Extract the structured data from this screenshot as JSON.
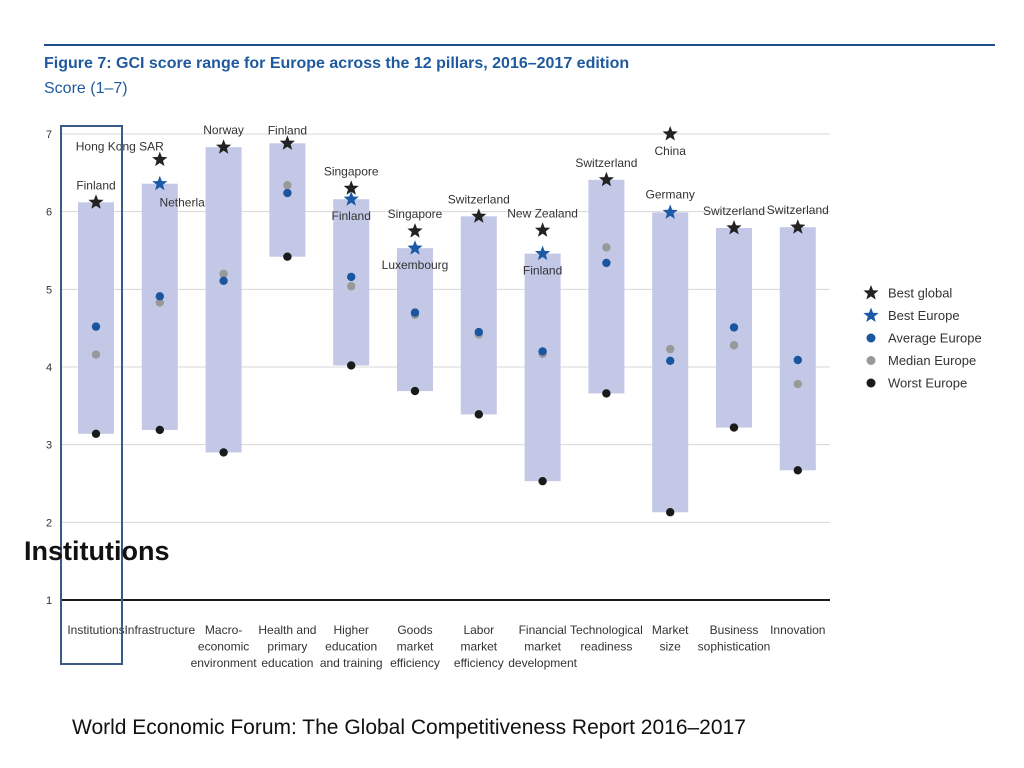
{
  "figure": {
    "title": "Figure 7: GCI score range for Europe across the 12 pillars, 2016–2017 edition",
    "subtitle": "Score (1–7)"
  },
  "callout": {
    "label": "Institutions"
  },
  "source": {
    "text": "World Economic Forum: The Global Competitiveness Report 2016–2017"
  },
  "colors": {
    "band": "#c2c8e6",
    "best_global": "#222222",
    "best_europe": "#1a5aa6",
    "average_europe": "#1a55a0",
    "median_europe": "#999999",
    "worst_europe": "#1a1a1a",
    "highlight": "#3a5a85",
    "title": "#1f5a9e"
  },
  "chart_data": {
    "type": "range",
    "title": "Figure 7: GCI score range for Europe across the 12 pillars, 2016–2017 edition",
    "ylabel": "Score (1–7)",
    "ylim": [
      1,
      7
    ],
    "yticks": [
      "1",
      "2",
      "3",
      "4",
      "5",
      "6",
      "7"
    ],
    "grid": true,
    "legend": [
      {
        "key": "best_global",
        "label": "Best global"
      },
      {
        "key": "best_europe",
        "label": "Best Europe"
      },
      {
        "key": "average_europe",
        "label": "Average Europe"
      },
      {
        "key": "median_europe",
        "label": "Median Europe"
      },
      {
        "key": "worst_europe",
        "label": "Worst Europe"
      }
    ],
    "pillars": [
      {
        "label": [
          "Institutions"
        ],
        "best_global": 6.12,
        "best_global_country": "Finland",
        "best_europe": 6.12,
        "best_europe_country": "",
        "average": 4.52,
        "median": 4.16,
        "worst": 3.14
      },
      {
        "label": [
          "Infrastructure"
        ],
        "best_global": 6.67,
        "best_global_country": "Hong Kong SAR",
        "best_europe": 6.36,
        "best_europe_country": "Netherlands",
        "average": 4.91,
        "median": 4.83,
        "worst": 3.19
      },
      {
        "label": [
          "Macro-",
          "economic",
          "environment"
        ],
        "best_global": 6.83,
        "best_global_country": "Norway",
        "best_europe": 6.83,
        "best_europe_country": "",
        "average": 5.11,
        "median": 5.2,
        "worst": 2.9
      },
      {
        "label": [
          "Health and",
          "primary",
          "education"
        ],
        "best_global": 6.88,
        "best_global_country": "Finland",
        "best_europe": 6.88,
        "best_europe_country": "",
        "average": 6.24,
        "median": 6.34,
        "worst": 5.42
      },
      {
        "label": [
          "Higher",
          "education",
          "and training"
        ],
        "best_global": 6.3,
        "best_global_country": "Singapore",
        "best_europe": 6.16,
        "best_europe_country": "Finland",
        "average": 5.16,
        "median": 5.04,
        "worst": 4.02
      },
      {
        "label": [
          "Goods",
          "market",
          "efficiency"
        ],
        "best_global": 5.75,
        "best_global_country": "Singapore",
        "best_europe": 5.53,
        "best_europe_country": "Luxembourg",
        "average": 4.7,
        "median": 4.67,
        "worst": 3.69
      },
      {
        "label": [
          "Labor",
          "market",
          "efficiency"
        ],
        "best_global": 5.94,
        "best_global_country": "Switzerland",
        "best_europe": 5.94,
        "best_europe_country": "",
        "average": 4.45,
        "median": 4.42,
        "worst": 3.39
      },
      {
        "label": [
          "Financial",
          "market",
          "development"
        ],
        "best_global": 5.76,
        "best_global_country": "New Zealand",
        "best_europe": 5.46,
        "best_europe_country": "Finland",
        "average": 4.2,
        "median": 4.17,
        "worst": 2.53
      },
      {
        "label": [
          "Technological",
          "readiness"
        ],
        "best_global": 6.41,
        "best_global_country": "Switzerland",
        "best_europe": 6.41,
        "best_europe_country": "",
        "average": 5.34,
        "median": 5.54,
        "worst": 3.66
      },
      {
        "label": [
          "Market",
          "size"
        ],
        "best_global": 7.0,
        "best_global_country": "China",
        "best_europe": 5.99,
        "best_europe_country": "Germany",
        "average": 4.08,
        "median": 4.23,
        "worst": 2.13
      },
      {
        "label": [
          "Business",
          "sophistication"
        ],
        "best_global": 5.79,
        "best_global_country": "Switzerland",
        "best_europe": 5.79,
        "best_europe_country": "",
        "average": 4.51,
        "median": 4.28,
        "worst": 3.22
      },
      {
        "label": [
          "Innovation"
        ],
        "best_global": 5.8,
        "best_global_country": "Switzerland",
        "best_europe": 5.8,
        "best_europe_country": "",
        "average": 4.09,
        "median": 3.78,
        "worst": 2.67
      }
    ]
  }
}
